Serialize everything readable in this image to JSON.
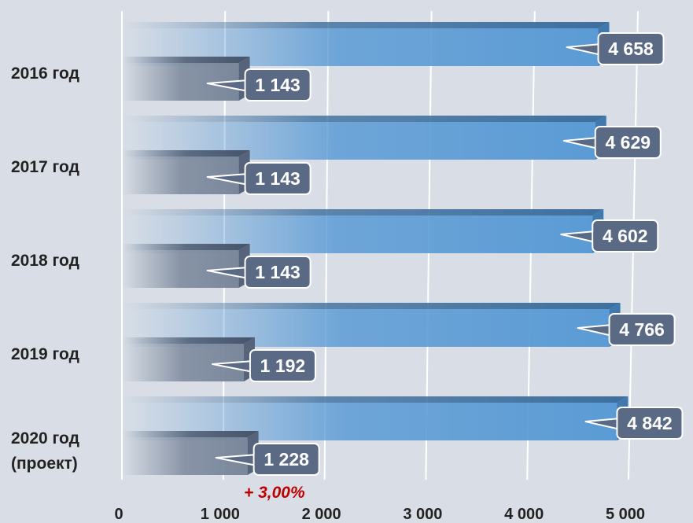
{
  "chart_data": {
    "type": "bar",
    "orientation": "horizontal",
    "categories": [
      [
        "2016 год"
      ],
      [
        "2017 год"
      ],
      [
        "2018 год"
      ],
      [
        "2019 год"
      ],
      [
        "2020 год",
        "(проект)"
      ]
    ],
    "series": [
      {
        "values": [
          4658,
          4629,
          4602,
          4766,
          4842
        ],
        "labels": [
          "4 658",
          "4 629",
          "4 602",
          "4 766",
          "4 842"
        ],
        "color": "#5b9bd5"
      },
      {
        "values": [
          1143,
          1143,
          1143,
          1192,
          1228
        ],
        "labels": [
          "1 143",
          "1 143",
          "1 143",
          "1 192",
          "1 228"
        ],
        "color": "#7a879b"
      }
    ],
    "xlim": [
      0,
      5000
    ],
    "x_ticks": [
      0,
      1000,
      2000,
      3000,
      4000,
      5000
    ],
    "x_tick_labels": [
      "0",
      "1 000",
      "2 000",
      "3 000",
      "4 000",
      "5 000"
    ],
    "grid": true,
    "annotation": {
      "text": "+ 3,00%",
      "color": "#c00000"
    },
    "label_box_color": "#5a6a85"
  }
}
